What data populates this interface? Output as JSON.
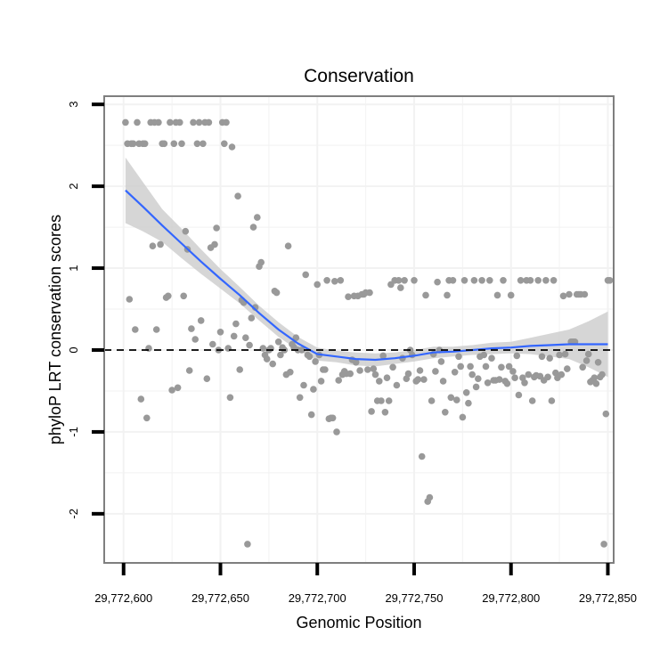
{
  "chart_data": {
    "type": "scatter",
    "title": "Conservation",
    "xlabel": "Genomic Position",
    "ylabel": "phyloP LRT conservation scores",
    "xlim": [
      29772590,
      29772853
    ],
    "ylim": [
      -2.6,
      3.1
    ],
    "x_ticks": [
      29772600,
      29772650,
      29772700,
      29772750,
      29772800,
      29772850
    ],
    "x_tick_labels": [
      "29,772,600",
      "29,772,650",
      "29,772,700",
      "29,772,750",
      "29,772,800",
      "29,772,850"
    ],
    "y_ticks": [
      -2,
      -1,
      0,
      1,
      2,
      3
    ],
    "y_tick_labels": [
      "-2",
      "-1",
      "0",
      "1",
      "2",
      "3"
    ],
    "reference_line": {
      "y": 0,
      "style": "dashed",
      "color": "#000000"
    },
    "colors": {
      "points": "#999999",
      "smooth_line": "#3366ff",
      "confidence_band": "#cccccc",
      "panel_border": "#7f7f7f",
      "grid": "#f2f2f2"
    },
    "points": [
      [
        29772601,
        2.78
      ],
      [
        29772602,
        2.52
      ],
      [
        29772603,
        0.62
      ],
      [
        29772604,
        2.52
      ],
      [
        29772605,
        2.52
      ],
      [
        29772606,
        0.25
      ],
      [
        29772607,
        2.78
      ],
      [
        29772608,
        2.52
      ],
      [
        29772609,
        -0.6
      ],
      [
        29772610,
        2.52
      ],
      [
        29772611,
        2.52
      ],
      [
        29772612,
        -0.83
      ],
      [
        29772613,
        0.02
      ],
      [
        29772614,
        2.78
      ],
      [
        29772615,
        1.27
      ],
      [
        29772616,
        2.78
      ],
      [
        29772617,
        0.25
      ],
      [
        29772618,
        2.78
      ],
      [
        29772619,
        1.29
      ],
      [
        29772620,
        2.52
      ],
      [
        29772621,
        2.52
      ],
      [
        29772622,
        0.64
      ],
      [
        29772623,
        0.66
      ],
      [
        29772624,
        2.78
      ],
      [
        29772625,
        -0.49
      ],
      [
        29772626,
        2.52
      ],
      [
        29772627,
        2.78
      ],
      [
        29772628,
        -0.46
      ],
      [
        29772629,
        2.78
      ],
      [
        29772630,
        2.52
      ],
      [
        29772631,
        0.66
      ],
      [
        29772632,
        1.45
      ],
      [
        29772633,
        1.23
      ],
      [
        29772634,
        -0.25
      ],
      [
        29772635,
        0.26
      ],
      [
        29772636,
        2.78
      ],
      [
        29772637,
        0.13
      ],
      [
        29772638,
        2.52
      ],
      [
        29772639,
        2.78
      ],
      [
        29772640,
        0.36
      ],
      [
        29772641,
        2.52
      ],
      [
        29772642,
        2.78
      ],
      [
        29772643,
        -0.35
      ],
      [
        29772644,
        2.78
      ],
      [
        29772645,
        1.25
      ],
      [
        29772646,
        0.07
      ],
      [
        29772647,
        1.29
      ],
      [
        29772648,
        1.49
      ],
      [
        29772649,
        0.0
      ],
      [
        29772650,
        0.22
      ],
      [
        29772651,
        2.78
      ],
      [
        29772652,
        2.52
      ],
      [
        29772653,
        2.78
      ],
      [
        29772654,
        0.02
      ],
      [
        29772655,
        -0.58
      ],
      [
        29772656,
        2.48
      ],
      [
        29772657,
        0.17
      ],
      [
        29772658,
        0.32
      ],
      [
        29772659,
        1.88
      ],
      [
        29772660,
        -0.24
      ],
      [
        29772661,
        0.61
      ],
      [
        29772662,
        0.58
      ],
      [
        29772663,
        0.15
      ],
      [
        29772664,
        -2.37
      ],
      [
        29772665,
        0.06
      ],
      [
        29772666,
        0.39
      ],
      [
        29772667,
        1.5
      ],
      [
        29772668,
        0.52
      ],
      [
        29772669,
        1.62
      ],
      [
        29772670,
        1.02
      ],
      [
        29772671,
        1.07
      ],
      [
        29772672,
        0.02
      ],
      [
        29772673,
        -0.06
      ],
      [
        29772674,
        -0.11
      ],
      [
        29772675,
        0.0
      ],
      [
        29772676,
        0.02
      ],
      [
        29772677,
        -0.17
      ],
      [
        29772678,
        0.72
      ],
      [
        29772679,
        0.7
      ],
      [
        29772680,
        0.1
      ],
      [
        29772681,
        -0.06
      ],
      [
        29772682,
        0.03
      ],
      [
        29772683,
        0.0
      ],
      [
        29772684,
        -0.3
      ],
      [
        29772685,
        1.27
      ],
      [
        29772686,
        -0.27
      ],
      [
        29772687,
        0.07
      ],
      [
        29772688,
        0.03
      ],
      [
        29772689,
        0.15
      ],
      [
        29772690,
        0.0
      ],
      [
        29772691,
        -0.58
      ],
      [
        29772692,
        0.0
      ],
      [
        29772693,
        -0.43
      ],
      [
        29772694,
        0.92
      ],
      [
        29772695,
        -0.06
      ],
      [
        29772696,
        -0.08
      ],
      [
        29772697,
        -0.79
      ],
      [
        29772698,
        -0.48
      ],
      [
        29772699,
        -0.14
      ],
      [
        29772700,
        0.8
      ],
      [
        29772701,
        -0.06
      ],
      [
        29772702,
        -0.38
      ],
      [
        29772703,
        -0.24
      ],
      [
        29772704,
        -0.24
      ],
      [
        29772705,
        0.85
      ],
      [
        29772706,
        -0.84
      ],
      [
        29772707,
        -0.83
      ],
      [
        29772708,
        -0.83
      ],
      [
        29772709,
        0.84
      ],
      [
        29772710,
        -1.0
      ],
      [
        29772711,
        -0.37
      ],
      [
        29772712,
        0.85
      ],
      [
        29772713,
        -0.3
      ],
      [
        29772714,
        -0.26
      ],
      [
        29772715,
        -0.29
      ],
      [
        29772716,
        0.65
      ],
      [
        29772717,
        -0.29
      ],
      [
        29772718,
        -0.12
      ],
      [
        29772719,
        0.66
      ],
      [
        29772720,
        -0.15
      ],
      [
        29772721,
        0.66
      ],
      [
        29772722,
        -0.25
      ],
      [
        29772723,
        0.68
      ],
      [
        29772724,
        0.68
      ],
      [
        29772725,
        0.7
      ],
      [
        29772726,
        -0.24
      ],
      [
        29772727,
        0.7
      ],
      [
        29772728,
        -0.75
      ],
      [
        29772729,
        -0.23
      ],
      [
        29772730,
        -0.3
      ],
      [
        29772731,
        -0.62
      ],
      [
        29772732,
        -0.38
      ],
      [
        29772733,
        -0.62
      ],
      [
        29772734,
        -0.07
      ],
      [
        29772735,
        -0.76
      ],
      [
        29772736,
        -0.34
      ],
      [
        29772737,
        -0.62
      ],
      [
        29772738,
        0.8
      ],
      [
        29772739,
        -0.21
      ],
      [
        29772740,
        0.85
      ],
      [
        29772741,
        -0.43
      ],
      [
        29772742,
        0.85
      ],
      [
        29772743,
        0.76
      ],
      [
        29772744,
        -0.1
      ],
      [
        29772745,
        0.85
      ],
      [
        29772746,
        -0.35
      ],
      [
        29772747,
        -0.29
      ],
      [
        29772748,
        0.0
      ],
      [
        29772749,
        -0.06
      ],
      [
        29772750,
        0.85
      ],
      [
        29772751,
        -0.38
      ],
      [
        29772752,
        -0.36
      ],
      [
        29772753,
        -0.25
      ],
      [
        29772754,
        -1.3
      ],
      [
        29772755,
        -0.36
      ],
      [
        29772756,
        0.67
      ],
      [
        29772757,
        -1.85
      ],
      [
        29772758,
        -1.8
      ],
      [
        29772759,
        -0.62
      ],
      [
        29772760,
        -0.05
      ],
      [
        29772761,
        -0.26
      ],
      [
        29772762,
        0.83
      ],
      [
        29772763,
        0.0
      ],
      [
        29772764,
        -0.14
      ],
      [
        29772765,
        -0.38
      ],
      [
        29772766,
        -0.76
      ],
      [
        29772767,
        0.67
      ],
      [
        29772768,
        0.85
      ],
      [
        29772769,
        -0.58
      ],
      [
        29772770,
        0.85
      ],
      [
        29772771,
        -0.27
      ],
      [
        29772772,
        -0.61
      ],
      [
        29772773,
        -0.08
      ],
      [
        29772774,
        -0.2
      ],
      [
        29772775,
        -0.82
      ],
      [
        29772776,
        0.85
      ],
      [
        29772777,
        -0.52
      ],
      [
        29772778,
        -0.65
      ],
      [
        29772779,
        -0.2
      ],
      [
        29772780,
        -0.3
      ],
      [
        29772781,
        0.85
      ],
      [
        29772782,
        -0.45
      ],
      [
        29772783,
        -0.35
      ],
      [
        29772784,
        -0.08
      ],
      [
        29772785,
        0.85
      ],
      [
        29772786,
        -0.06
      ],
      [
        29772787,
        -0.2
      ],
      [
        29772788,
        -0.4
      ],
      [
        29772789,
        0.85
      ],
      [
        29772790,
        -0.1
      ],
      [
        29772791,
        -0.37
      ],
      [
        29772792,
        -0.37
      ],
      [
        29772793,
        0.67
      ],
      [
        29772794,
        -0.36
      ],
      [
        29772795,
        -0.21
      ],
      [
        29772796,
        0.85
      ],
      [
        29772797,
        -0.38
      ],
      [
        29772798,
        -0.41
      ],
      [
        29772799,
        -0.2
      ],
      [
        29772800,
        0.67
      ],
      [
        29772801,
        -0.26
      ],
      [
        29772802,
        -0.34
      ],
      [
        29772803,
        -0.07
      ],
      [
        29772804,
        -0.55
      ],
      [
        29772805,
        0.85
      ],
      [
        29772806,
        -0.34
      ],
      [
        29772807,
        -0.4
      ],
      [
        29772808,
        0.85
      ],
      [
        29772809,
        -0.3
      ],
      [
        29772810,
        0.85
      ],
      [
        29772811,
        -0.62
      ],
      [
        29772812,
        -0.33
      ],
      [
        29772813,
        -0.31
      ],
      [
        29772814,
        0.85
      ],
      [
        29772815,
        -0.32
      ],
      [
        29772816,
        -0.08
      ],
      [
        29772817,
        -0.37
      ],
      [
        29772818,
        0.85
      ],
      [
        29772819,
        -0.33
      ],
      [
        29772820,
        -0.1
      ],
      [
        29772821,
        -0.62
      ],
      [
        29772822,
        0.85
      ],
      [
        29772823,
        -0.28
      ],
      [
        29772824,
        -0.34
      ],
      [
        29772825,
        -0.06
      ],
      [
        29772826,
        -0.3
      ],
      [
        29772827,
        0.66
      ],
      [
        29772828,
        -0.05
      ],
      [
        29772829,
        -0.23
      ],
      [
        29772830,
        0.68
      ],
      [
        29772831,
        0.1
      ],
      [
        29772832,
        0.1
      ],
      [
        29772833,
        0.1
      ],
      [
        29772834,
        0.68
      ],
      [
        29772835,
        0.68
      ],
      [
        29772836,
        0.68
      ],
      [
        29772837,
        -0.21
      ],
      [
        29772838,
        0.68
      ],
      [
        29772839,
        -0.13
      ],
      [
        29772840,
        -0.05
      ],
      [
        29772841,
        -0.39
      ],
      [
        29772842,
        -0.37
      ],
      [
        29772843,
        -0.34
      ],
      [
        29772844,
        -0.41
      ],
      [
        29772845,
        -0.15
      ],
      [
        29772846,
        -0.33
      ],
      [
        29772847,
        -0.3
      ],
      [
        29772848,
        -2.37
      ],
      [
        29772849,
        -0.78
      ],
      [
        29772850,
        0.85
      ],
      [
        29772851,
        0.85
      ]
    ],
    "smooth_line": {
      "x": [
        29772601,
        29772610,
        29772620,
        29772630,
        29772640,
        29772650,
        29772660,
        29772670,
        29772680,
        29772690,
        29772700,
        29772710,
        29772720,
        29772730,
        29772740,
        29772750,
        29772760,
        29772770,
        29772780,
        29772790,
        29772800,
        29772810,
        29772820,
        29772830,
        29772840,
        29772850
      ],
      "y": [
        1.95,
        1.75,
        1.52,
        1.3,
        1.08,
        0.87,
        0.67,
        0.45,
        0.25,
        0.08,
        -0.05,
        -0.08,
        -0.11,
        -0.12,
        -0.1,
        -0.07,
        -0.03,
        -0.02,
        0.0,
        0.02,
        0.03,
        0.05,
        0.06,
        0.07,
        0.07,
        0.07
      ],
      "lower": [
        1.55,
        1.45,
        1.32,
        1.12,
        0.93,
        0.75,
        0.57,
        0.36,
        0.16,
        0.0,
        -0.13,
        -0.15,
        -0.19,
        -0.2,
        -0.17,
        -0.14,
        -0.1,
        -0.08,
        -0.06,
        -0.05,
        -0.04,
        -0.05,
        -0.08,
        -0.11,
        -0.21,
        -0.33
      ],
      "upper": [
        2.35,
        2.05,
        1.72,
        1.48,
        1.23,
        0.99,
        0.77,
        0.54,
        0.34,
        0.16,
        0.03,
        -0.01,
        -0.03,
        -0.04,
        -0.03,
        0.0,
        0.04,
        0.04,
        0.06,
        0.09,
        0.1,
        0.15,
        0.2,
        0.25,
        0.35,
        0.47
      ]
    }
  }
}
